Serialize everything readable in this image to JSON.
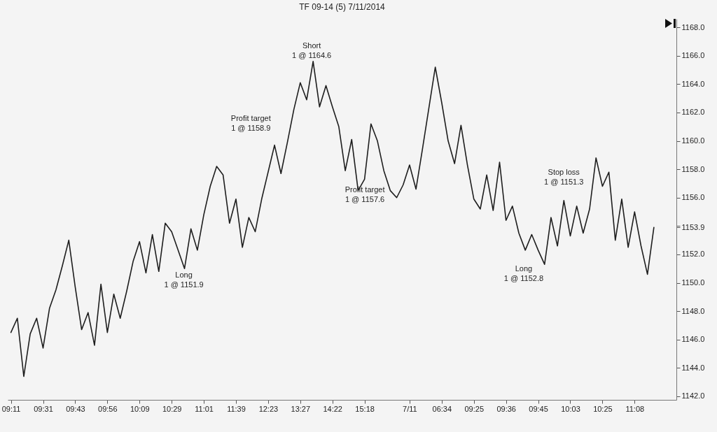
{
  "chart_data": {
    "type": "line",
    "title": "TF 09-14 (5) 7/11/2014",
    "categories": [
      "09:11",
      null,
      null,
      null,
      null,
      "09:31",
      null,
      null,
      null,
      null,
      "09:43",
      null,
      null,
      null,
      null,
      "09:56",
      null,
      null,
      null,
      null,
      "10:09",
      null,
      null,
      null,
      null,
      "10:29",
      null,
      null,
      null,
      null,
      "11:01",
      null,
      null,
      null,
      null,
      "11:39",
      null,
      null,
      null,
      null,
      "12:23",
      null,
      null,
      null,
      null,
      "13:27",
      null,
      null,
      null,
      null,
      "14:22",
      null,
      null,
      null,
      null,
      "15:18",
      null,
      null,
      null,
      null,
      null,
      null,
      "7/11",
      null,
      null,
      null,
      null,
      "06:34",
      null,
      null,
      null,
      null,
      "09:25",
      null,
      null,
      null,
      null,
      "09:36",
      null,
      null,
      null,
      null,
      "09:45",
      null,
      null,
      null,
      null,
      "10:03",
      null,
      null,
      null,
      null,
      "10:25",
      null,
      null,
      null,
      null,
      "11:08",
      null,
      null,
      null,
      null,
      null,
      null
    ],
    "series": [
      {
        "color": "#1e1e1e",
        "values": [
          1146.5,
          1147.5,
          1143.4,
          1146.4,
          1147.5,
          1145.4,
          1148.2,
          1149.5,
          1151.2,
          1153.0,
          1149.7,
          1146.7,
          1147.9,
          1145.6,
          1149.9,
          1146.5,
          1149.2,
          1147.5,
          1149.4,
          1151.5,
          1152.9,
          1150.7,
          1153.4,
          1150.8,
          1154.2,
          1153.6,
          1152.3,
          1151.0,
          1153.8,
          1152.3,
          1154.8,
          1156.8,
          1158.2,
          1157.6,
          1154.2,
          1155.9,
          1152.5,
          1154.6,
          1153.6,
          1155.9,
          1157.8,
          1159.7,
          1157.7,
          1159.9,
          1162.2,
          1164.1,
          1162.9,
          1165.6,
          1162.4,
          1163.9,
          1162.4,
          1161.0,
          1157.9,
          1160.1,
          1156.5,
          1157.3,
          1161.2,
          1160.0,
          1157.9,
          1156.5,
          1156.0,
          1156.9,
          1158.3,
          1156.6,
          1159.4,
          1162.3,
          1165.2,
          1162.7,
          1160.0,
          1158.4,
          1161.1,
          1158.3,
          1155.9,
          1155.2,
          1157.6,
          1155.1,
          1158.5,
          1154.4,
          1155.4,
          1153.5,
          1152.3,
          1153.4,
          1152.3,
          1151.3,
          1154.6,
          1152.6,
          1155.8,
          1153.3,
          1155.4,
          1153.5,
          1155.2,
          1158.8,
          1156.8,
          1157.8,
          1153.0,
          1155.9,
          1152.5,
          1155.0,
          1152.6,
          1150.6,
          1153.9,
          null,
          null,
          null
        ]
      }
    ],
    "ylim": [
      1141.75,
      1168.6
    ],
    "yticks": [
      {
        "value": 1142,
        "label": "1142.0"
      },
      {
        "value": 1144,
        "label": "1144.0"
      },
      {
        "value": 1146,
        "label": "1146.0"
      },
      {
        "value": 1148,
        "label": "1148.0"
      },
      {
        "value": 1150,
        "label": "1150.0"
      },
      {
        "value": 1152,
        "label": "1152.0"
      },
      {
        "value": 1153.9,
        "label": "1153.9"
      },
      {
        "value": 1154,
        "label": null
      },
      {
        "value": 1156,
        "label": "1156.0"
      },
      {
        "value": 1158,
        "label": "1158.0"
      },
      {
        "value": 1160,
        "label": "1160.0"
      },
      {
        "value": 1162,
        "label": "1162.0"
      },
      {
        "value": 1164,
        "label": "1164.0"
      },
      {
        "value": 1166,
        "label": "1166.0"
      },
      {
        "value": 1168,
        "label": "1168.0"
      }
    ],
    "annotations": [
      "Long\n1 @ 1151.9",
      "Profit target\n1 @ 1158.9",
      "Short\n1 @ 1164.6",
      "Profit target\n1 @ 1157.6",
      "Long\n1 @ 1152.8",
      "Stop loss\n1 @ 1151.3"
    ],
    "grid": false,
    "marker": "none",
    "line_style": "solid"
  }
}
